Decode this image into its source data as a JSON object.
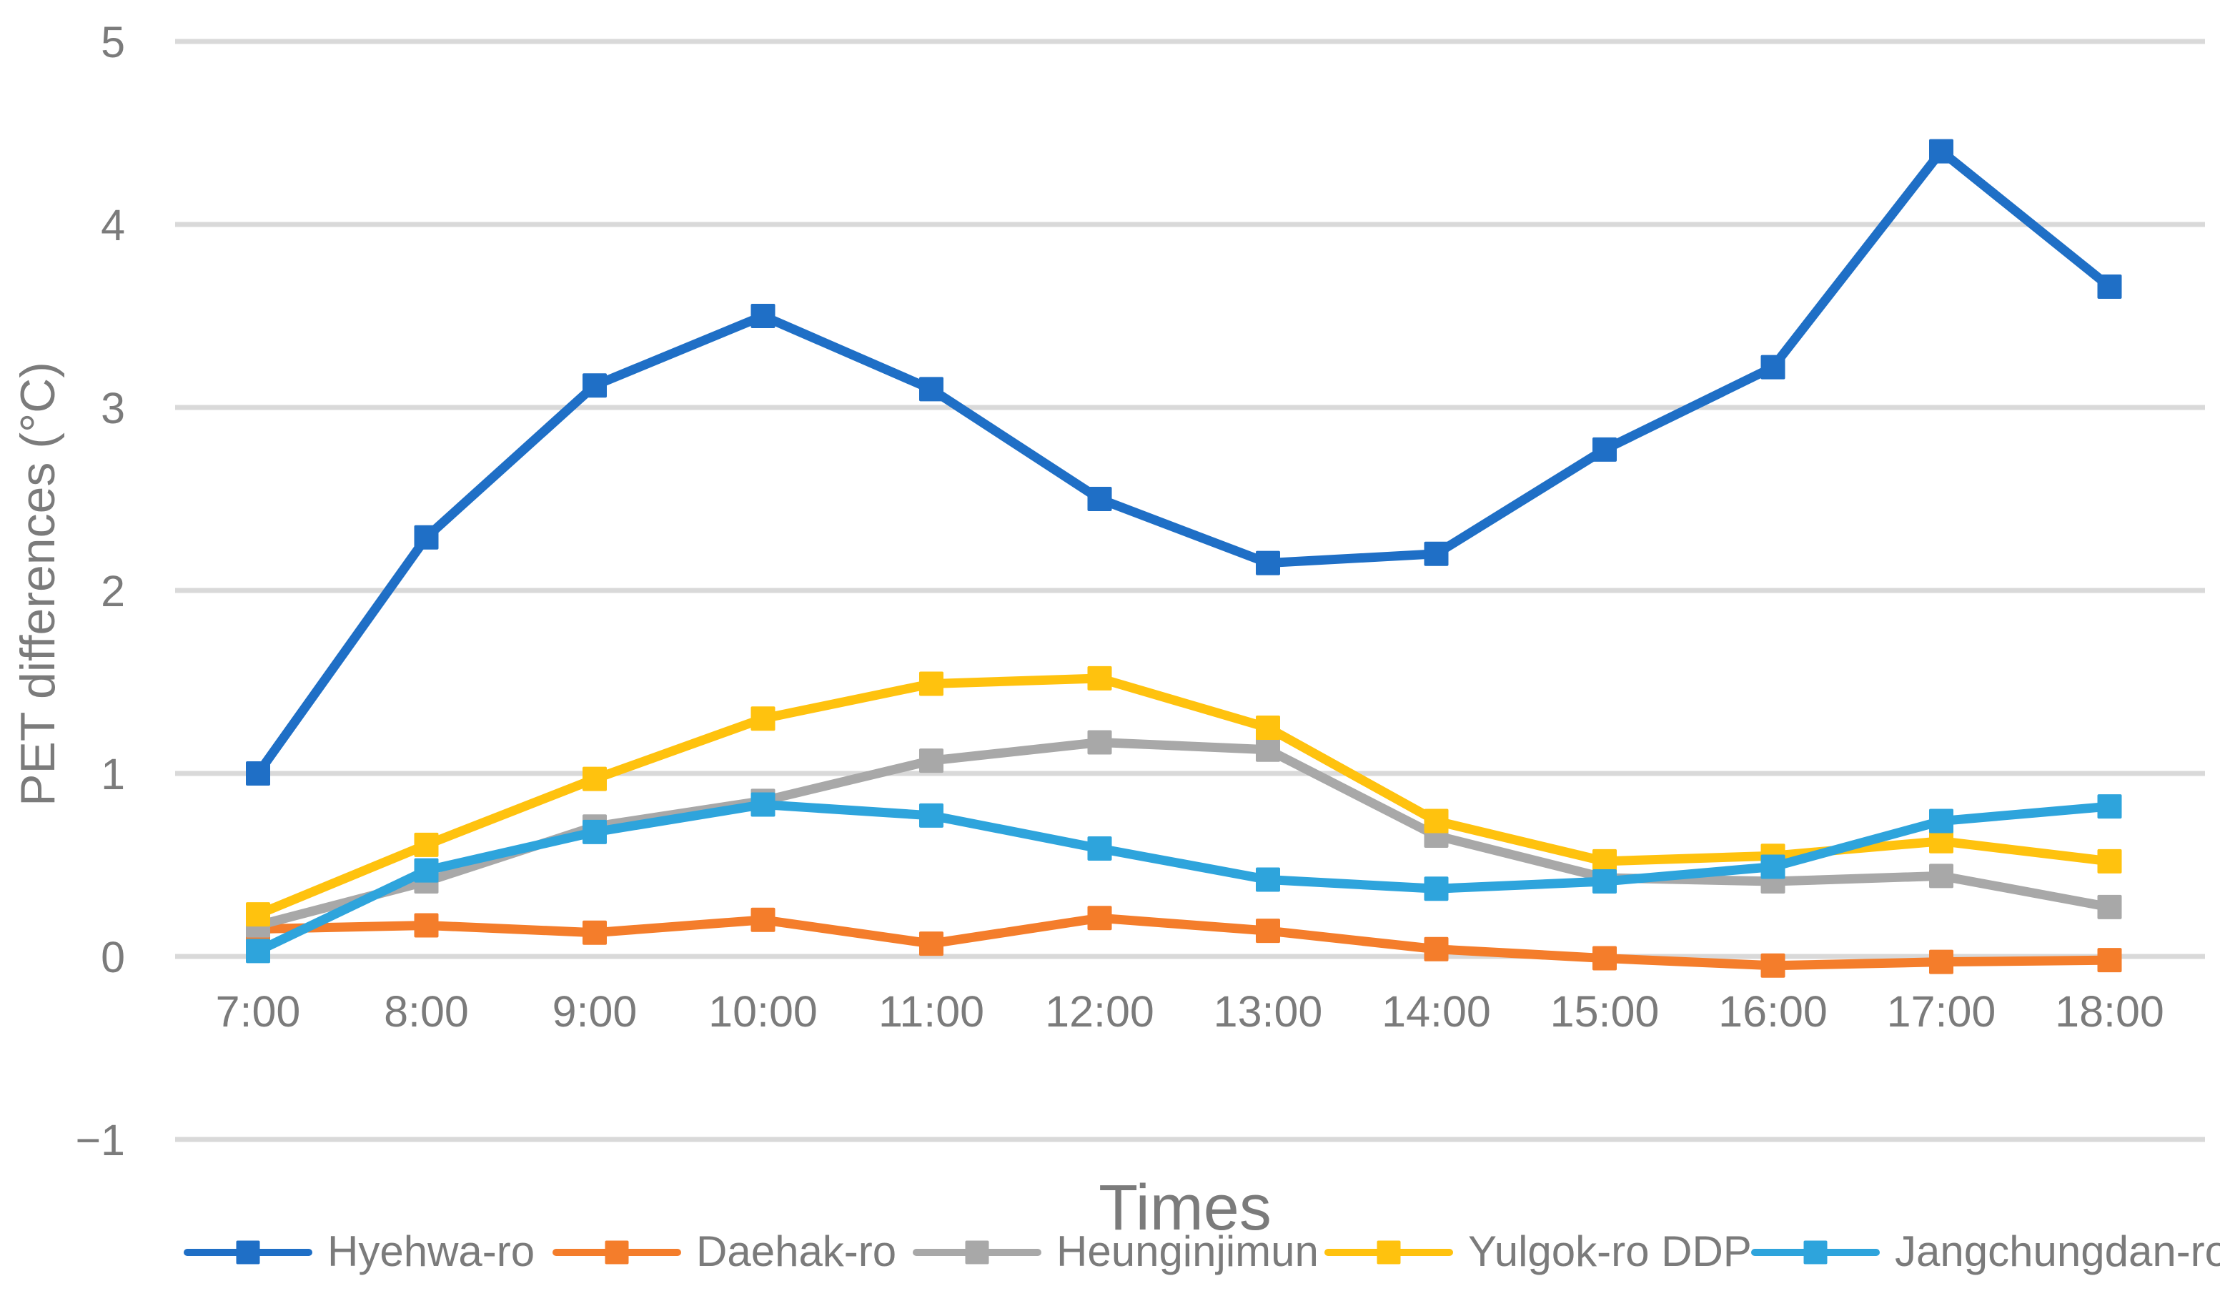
{
  "chart_data": {
    "type": "line",
    "title": "",
    "xlabel": "Times",
    "ylabel": "PET differences (°C)",
    "x": [
      "7:00",
      "8:00",
      "9:00",
      "10:00",
      "11:00",
      "12:00",
      "13:00",
      "14:00",
      "15:00",
      "16:00",
      "17:00",
      "18:00"
    ],
    "yticks": [
      5,
      4,
      3,
      2,
      1,
      0,
      -1
    ],
    "ylim": [
      -1.4,
      5.15
    ],
    "grid": true,
    "legend_position": "bottom",
    "axis_text_color": "#7B7B7B",
    "gridline_color": "#D9D9D9",
    "background_color": "#FFFFFF",
    "series": [
      {
        "name": "Hyehwa-ro",
        "color": "#1F6FC6",
        "values": [
          1.0,
          2.29,
          3.12,
          3.5,
          3.1,
          2.5,
          2.15,
          2.2,
          2.77,
          3.22,
          4.4,
          3.66
        ]
      },
      {
        "name": "Daehak-ro",
        "color": "#F47D2B",
        "values": [
          0.15,
          0.17,
          0.13,
          0.2,
          0.07,
          0.21,
          0.14,
          0.04,
          -0.01,
          -0.05,
          -0.03,
          -0.02
        ]
      },
      {
        "name": "Heunginjimun",
        "color": "#A8A8A8",
        "values": [
          0.17,
          0.41,
          0.71,
          0.85,
          1.07,
          1.17,
          1.13,
          0.66,
          0.43,
          0.41,
          0.44,
          0.27
        ]
      },
      {
        "name": "Yulgok-ro DDP",
        "color": "#FFC20E",
        "values": [
          0.23,
          0.61,
          0.97,
          1.3,
          1.49,
          1.52,
          1.25,
          0.74,
          0.52,
          0.55,
          0.63,
          0.52
        ]
      },
      {
        "name": "Jangchungdan-ro",
        "color": "#2EA4DC",
        "values": [
          0.03,
          0.47,
          0.68,
          0.83,
          0.77,
          0.59,
          0.42,
          0.37,
          0.41,
          0.49,
          0.74,
          0.82
        ]
      }
    ]
  }
}
